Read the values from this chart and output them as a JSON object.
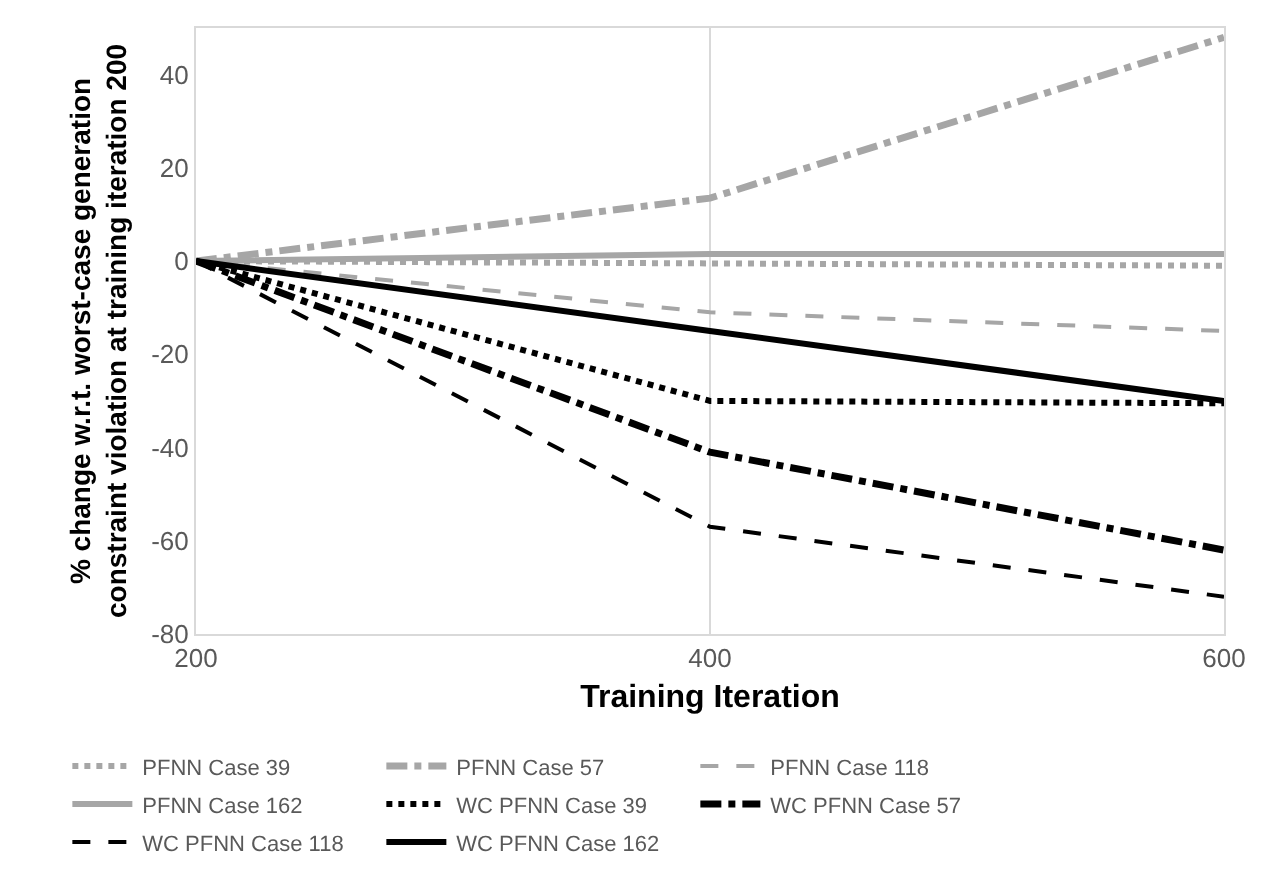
{
  "chart_data": {
    "type": "line",
    "xlabel": "Training Iteration",
    "ylabel": "% change w.r.t. worst-case generation\nconstraint violation at training iteration 200",
    "x": [
      200,
      400,
      600
    ],
    "xlim": [
      200,
      600
    ],
    "xticks": [
      200,
      400,
      600
    ],
    "ylim": [
      -80,
      50
    ],
    "yticks": [
      -80,
      -60,
      -40,
      -20,
      0,
      20,
      40
    ],
    "grid": "x",
    "legend": "bottom",
    "marker": "none",
    "series": [
      {
        "name": "PFNN Case 39",
        "color": "#a6a6a6",
        "line_style": "dotted",
        "values": [
          0,
          -0.5,
          -1
        ]
      },
      {
        "name": "PFNN Case 57",
        "color": "#a6a6a6",
        "line_style": "dashdot",
        "values": [
          0,
          13.5,
          48
        ]
      },
      {
        "name": "PFNN Case 118",
        "color": "#a6a6a6",
        "line_style": "dashed",
        "values": [
          0,
          -11,
          -15
        ]
      },
      {
        "name": "PFNN Case 162",
        "color": "#a6a6a6",
        "line_style": "solid",
        "values": [
          0,
          1.5,
          1.5
        ]
      },
      {
        "name": "WC PFNN Case 39",
        "color": "#000000",
        "line_style": "dotted",
        "values": [
          0,
          -30,
          -30.5
        ]
      },
      {
        "name": "WC PFNN Case 57",
        "color": "#000000",
        "line_style": "dashdot",
        "values": [
          0,
          -41,
          -62
        ]
      },
      {
        "name": "WC PFNN Case 118",
        "color": "#000000",
        "line_style": "dashed",
        "values": [
          0,
          -57,
          -72
        ]
      },
      {
        "name": "WC PFNN Case 162",
        "color": "#000000",
        "line_style": "solid",
        "values": [
          0,
          -15,
          -30
        ]
      }
    ]
  }
}
